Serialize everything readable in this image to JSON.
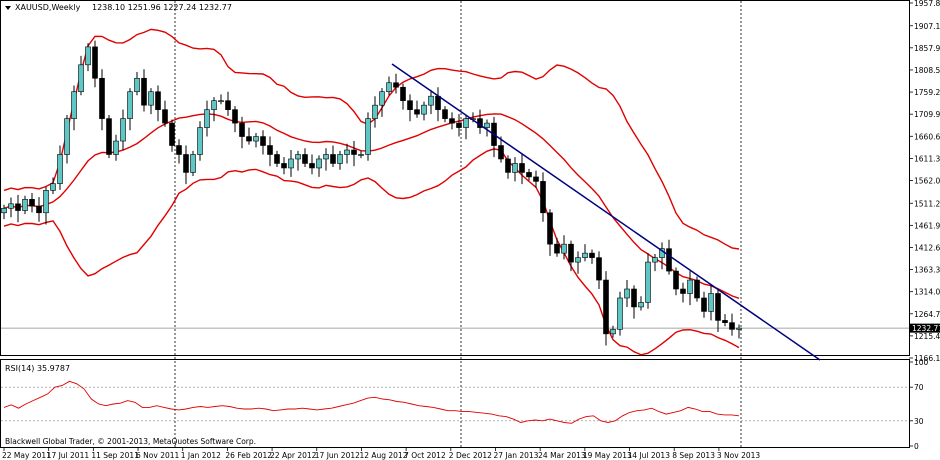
{
  "chart_data": {
    "type": "candlestick",
    "window_title": "XAUUSD,Weekly",
    "ohlc_readout": "1238.10 1251.96 1227.24 1232.77",
    "current_price_label": "1232.77",
    "price_axis_ticks": [
      "1957.85",
      "1907.10",
      "1857.90",
      "1808.55",
      "1759.20",
      "1709.90",
      "1660.60",
      "1611.30",
      "1562.00",
      "1511.25",
      "1461.95",
      "1412.65",
      "1363.35",
      "1314.05",
      "1264.75",
      "1215.45",
      "1166.15"
    ],
    "price_range": [
      1166.15,
      1957.85
    ],
    "date_ticks": [
      "22 May 2011",
      "17 Jul 2011",
      "11 Sep 2011",
      "6 Nov 2011",
      "1 Jan 2012",
      "26 Feb 2012",
      "22 Apr 2012",
      "17 Jun 2012",
      "12 Aug 2012",
      "7 Oct 2012",
      "2 Dec 2012",
      "27 Jan 2013",
      "24 Mar 2013",
      "19 May 2013",
      "14 Jul 2013",
      "8 Sep 2013",
      "3 Nov 2013"
    ],
    "candles_close": [
      1500,
      1510,
      1495,
      1520,
      1505,
      1490,
      1540,
      1555,
      1620,
      1700,
      1760,
      1820,
      1860,
      1790,
      1700,
      1620,
      1650,
      1700,
      1760,
      1790,
      1730,
      1760,
      1720,
      1690,
      1640,
      1620,
      1580,
      1620,
      1680,
      1720,
      1740,
      1740,
      1720,
      1690,
      1660,
      1650,
      1660,
      1640,
      1620,
      1600,
      1590,
      1610,
      1620,
      1600,
      1590,
      1610,
      1620,
      1600,
      1620,
      1630,
      1620,
      1620,
      1700,
      1730,
      1760,
      1780,
      1770,
      1740,
      1720,
      1710,
      1730,
      1750,
      1720,
      1700,
      1690,
      1680,
      1700,
      1700,
      1680,
      1690,
      1640,
      1610,
      1580,
      1600,
      1580,
      1570,
      1560,
      1490,
      1420,
      1400,
      1420,
      1380,
      1390,
      1400,
      1390,
      1340,
      1220,
      1230,
      1300,
      1320,
      1280,
      1290,
      1380,
      1390,
      1410,
      1360,
      1320,
      1310,
      1340,
      1300,
      1270,
      1310,
      1250,
      1245,
      1230,
      1232.77
    ],
    "indicators": [
      {
        "name": "Bollinger Bands",
        "color": "#e00000"
      },
      {
        "name": "Trend line",
        "color": "#000080"
      }
    ],
    "rsi": {
      "label": "RSI(14) 35.9787",
      "levels": [
        "100",
        "70",
        "30",
        "0"
      ],
      "range": [
        0,
        100
      ],
      "values": [
        46,
        49,
        45,
        50,
        54,
        58,
        62,
        70,
        72,
        77,
        74,
        68,
        56,
        50,
        48,
        50,
        51,
        54,
        52,
        46,
        46,
        48,
        46,
        44,
        43,
        44,
        46,
        47,
        46,
        47,
        48,
        47,
        45,
        44,
        44,
        45,
        44,
        42,
        43,
        44,
        44,
        45,
        44,
        43,
        44,
        45,
        47,
        49,
        51,
        54,
        57,
        58,
        56,
        55,
        53,
        52,
        50,
        48,
        47,
        46,
        44,
        42,
        42,
        41,
        41,
        40,
        39,
        38,
        36,
        35,
        32,
        28,
        30,
        31,
        30,
        32,
        30,
        28,
        27,
        32,
        35,
        36,
        30,
        28,
        30,
        36,
        40,
        42,
        43,
        45,
        41,
        38,
        40,
        42,
        46,
        44,
        41,
        41,
        38,
        37,
        37,
        36
      ]
    },
    "copyright": "Blackwell Global Trader, © 2001-2013, MetaQuotes Software Corp.",
    "colors": {
      "bull_body": "#5fc6c6",
      "bear_body": "#000000",
      "bands": "#e00000",
      "trendline": "#000080",
      "rsi_line": "#e00000",
      "price_line": "#888888"
    }
  }
}
